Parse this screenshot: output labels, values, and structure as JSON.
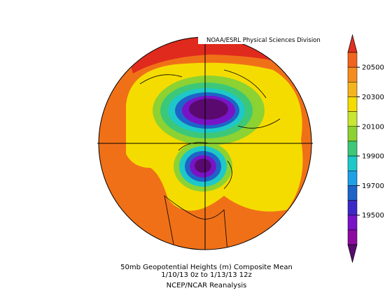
{
  "header": {
    "title": "NOAA/ESRL Physical Sciences Division"
  },
  "caption": {
    "line1": "50mb Geopotential Heights (m)   Composite Mean",
    "line2": "1/10/13 0z  to 1/13/13 12z",
    "line3": "NCEP/NCAR Reanalysis"
  },
  "colorbar": {
    "ticks": [
      20500,
      20300,
      20100,
      19900,
      19700,
      19500
    ],
    "colors": [
      "#e0301e",
      "#f0641e",
      "#f58c1e",
      "#f5b41e",
      "#f5dc00",
      "#c8e632",
      "#8cd232",
      "#3cc878",
      "#1ec8c8",
      "#1ea0e6",
      "#1e64c8",
      "#3c28c8",
      "#7814c8",
      "#8c0aa0",
      "#5a0a6e"
    ]
  }
}
